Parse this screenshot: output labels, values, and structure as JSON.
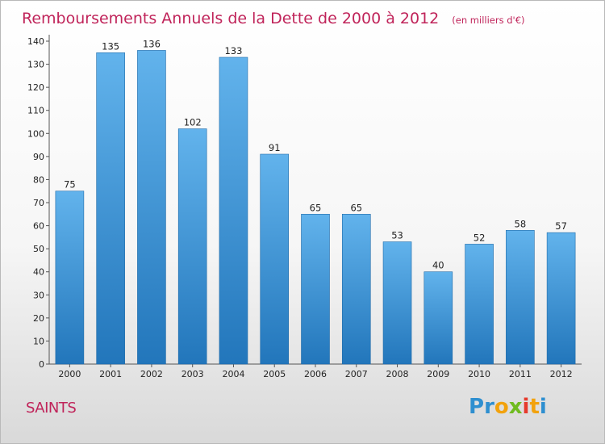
{
  "chart_data": {
    "type": "bar",
    "title": "Remboursements Annuels de la Dette de 2000 à 2012",
    "subtitle": "(en milliers d'€)",
    "categories": [
      "2000",
      "2001",
      "2002",
      "2003",
      "2004",
      "2005",
      "2006",
      "2007",
      "2008",
      "2009",
      "2010",
      "2011",
      "2012"
    ],
    "values": [
      75,
      135,
      136,
      102,
      133,
      91,
      65,
      65,
      53,
      40,
      52,
      58,
      57
    ],
    "ylim": [
      0,
      140
    ],
    "yticks": [
      0,
      10,
      20,
      30,
      40,
      50,
      60,
      70,
      80,
      90,
      100,
      110,
      120,
      130,
      140
    ],
    "grid": false,
    "bar_color_top": "#62b3ec",
    "bar_color_bottom": "#2276bb"
  },
  "place_name": "SAINTS",
  "logo": {
    "text": "Proxiti",
    "letters": [
      {
        "ch": "P",
        "color": "#2e8fd0"
      },
      {
        "ch": "r",
        "color": "#2e8fd0"
      },
      {
        "ch": "o",
        "color": "#f2a20d"
      },
      {
        "ch": "x",
        "color": "#6fbb1f"
      },
      {
        "ch": "i",
        "color": "#e63a2c"
      },
      {
        "ch": "t",
        "color": "#f2a20d"
      },
      {
        "ch": "i",
        "color": "#2e8fd0"
      }
    ]
  }
}
